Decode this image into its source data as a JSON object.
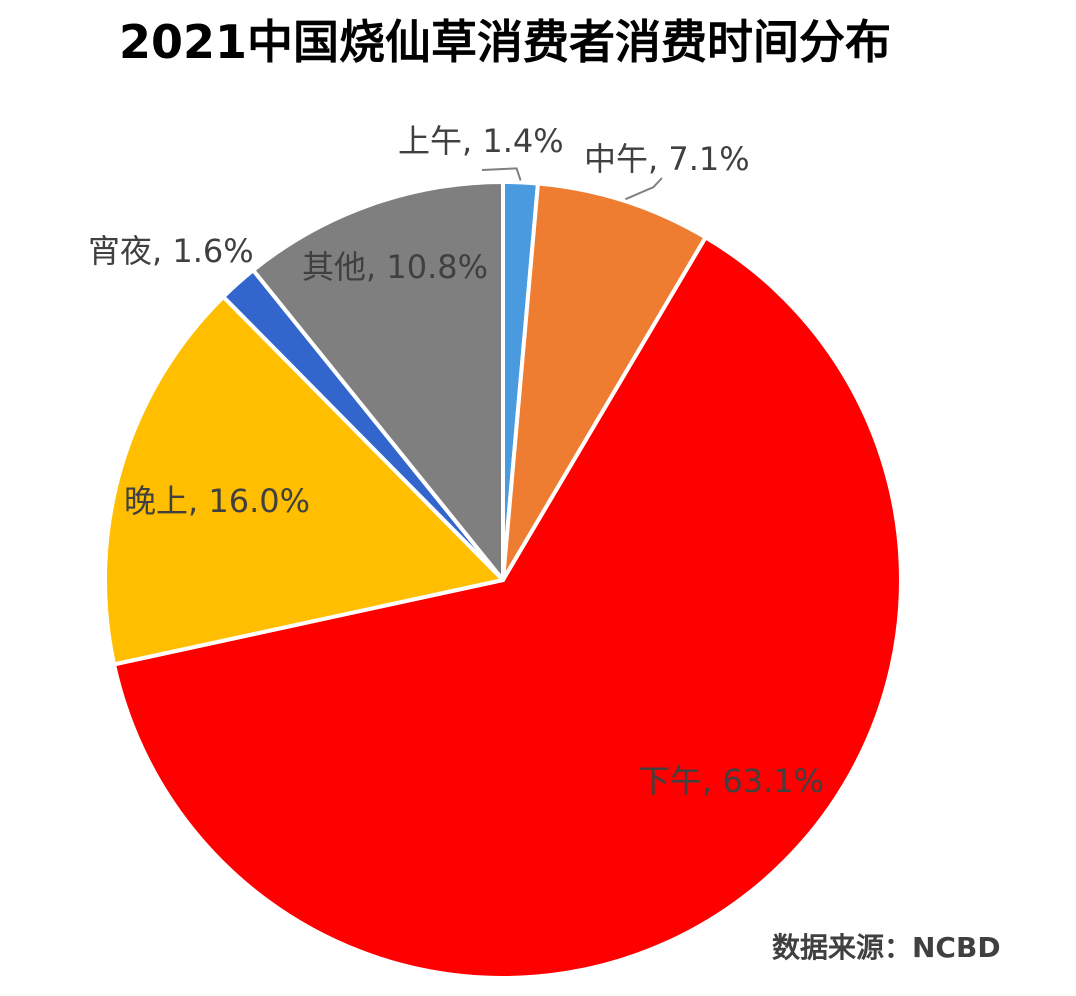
{
  "chart_data": {
    "type": "pie",
    "title": "2021中国烧仙草消费者消费时间分布",
    "categories": [
      "上午",
      "中午",
      "下午",
      "晚上",
      "宵夜",
      "其他"
    ],
    "values": [
      1.4,
      7.1,
      63.1,
      16.0,
      1.6,
      10.8
    ],
    "value_unit": "%",
    "labels": [
      "上午, 1.4%",
      "中午, 7.1%",
      "下午, 63.1%",
      "晚上, 16.0%",
      "宵夜, 1.6%",
      "其他, 10.8%"
    ],
    "colors": [
      "#4a9ae0",
      "#ee7d31",
      "#ff0000",
      "#ffbf00",
      "#3366cc",
      "#7f7f7f"
    ],
    "start_angle": "top",
    "direction": "clockwise",
    "source": "数据来源：NCBD"
  }
}
